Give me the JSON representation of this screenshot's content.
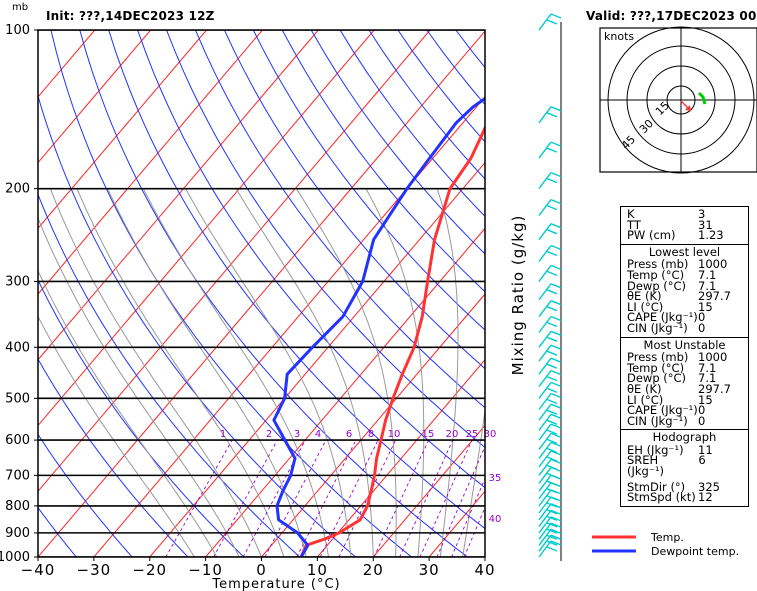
{
  "header": {
    "init": "Init: ???,14DEC2023 12Z",
    "valid": "Valid: ???,17DEC2023 00Z"
  },
  "chart_data": {
    "type": "line",
    "title": "",
    "xlabel": "Temperature (°C)",
    "ylabel": "mb",
    "secondary_label": "Mixing Ratio (g/kg)",
    "xlim": [
      -40,
      40
    ],
    "ylim": [
      1000,
      100
    ],
    "y_scale": "log",
    "x_ticks": [
      "−40",
      "−30",
      "−20",
      "−10",
      "0",
      "10",
      "20",
      "30",
      "40"
    ],
    "y_ticks": [
      100,
      200,
      300,
      400,
      500,
      600,
      700,
      800,
      900,
      1000
    ],
    "mixing_ratio_labels": [
      "1",
      "2",
      "3",
      "4",
      "6",
      "8",
      "10",
      "15",
      "20",
      "25",
      "30",
      "35",
      "40"
    ],
    "series": [
      {
        "name": "Temp.",
        "color": "#ff3333",
        "points": [
          [
            7.1,
            1000
          ],
          [
            6.2,
            950
          ],
          [
            8.5,
            925
          ],
          [
            10.2,
            900
          ],
          [
            12.0,
            850
          ],
          [
            11.2,
            800
          ],
          [
            9.6,
            750
          ],
          [
            7.8,
            700
          ],
          [
            5.6,
            650
          ],
          [
            3.6,
            600
          ],
          [
            1.4,
            550
          ],
          [
            -0.6,
            500
          ],
          [
            -2.6,
            450
          ],
          [
            -4.6,
            400
          ],
          [
            -7.8,
            350
          ],
          [
            -12.2,
            300
          ],
          [
            -17.3,
            250
          ],
          [
            -22.3,
            200
          ],
          [
            -23.2,
            175
          ],
          [
            -25.6,
            150
          ],
          [
            -25.6,
            140
          ],
          [
            -20.0,
            125
          ],
          [
            -14.0,
            110
          ],
          [
            -11.6,
            100
          ]
        ]
      },
      {
        "name": "Dewpoint temp.",
        "color": "#2233ff",
        "points": [
          [
            7.1,
            1000
          ],
          [
            6.5,
            950
          ],
          [
            2.8,
            900
          ],
          [
            -2.6,
            850
          ],
          [
            -5.0,
            800
          ],
          [
            -6.2,
            750
          ],
          [
            -7.2,
            700
          ],
          [
            -9.0,
            650
          ],
          [
            -13.6,
            600
          ],
          [
            -18.6,
            550
          ],
          [
            -20.0,
            500
          ],
          [
            -23.2,
            450
          ],
          [
            -22.8,
            400
          ],
          [
            -22.0,
            350
          ],
          [
            -23.8,
            300
          ],
          [
            -28.2,
            250
          ],
          [
            -30.0,
            200
          ],
          [
            -30.6,
            175
          ],
          [
            -31.2,
            150
          ],
          [
            -30.6,
            140
          ],
          [
            -28.0,
            125
          ],
          [
            -23.2,
            110
          ],
          [
            -20.6,
            100
          ]
        ]
      }
    ],
    "wind_barbs": [
      100,
      150,
      175,
      200,
      225,
      250,
      275,
      300,
      325,
      350,
      375,
      400,
      425,
      450,
      475,
      500,
      525,
      550,
      575,
      600,
      625,
      650,
      675,
      700,
      725,
      750,
      775,
      800,
      825,
      850,
      875,
      900,
      925,
      950,
      975,
      1000
    ]
  },
  "hodograph": {
    "label": "knots",
    "ring_labels": [
      "15",
      "30",
      "45"
    ]
  },
  "indices": {
    "k_label": "K",
    "k": "3",
    "tt_label": "TT",
    "tt": "31",
    "pw_label": "PW (cm)",
    "pw": "1.23"
  },
  "lowest_level": {
    "title": "Lowest level",
    "press_label": "Press (mb)",
    "press": "1000",
    "temp_label": "Temp (°C)",
    "temp": "7.1",
    "dewp_label": "Dewp (°C)",
    "dewp": "7.1",
    "theta_label": "θE (K)",
    "theta": "297.7",
    "li_label": "LI (°C)",
    "li": "15",
    "cape_label": "CAPE (Jkg⁻¹)",
    "cape": "0",
    "cin_label": "CIN (Jkg⁻¹)",
    "cin": "0"
  },
  "most_unstable": {
    "title": "Most Unstable",
    "press_label": "Press (mb)",
    "press": "1000",
    "temp_label": "Temp (°C)",
    "temp": "7.1",
    "dewp_label": "Dewp (°C)",
    "dewp": "7.1",
    "theta_label": "θE (K)",
    "theta": "297.7",
    "li_label": "LI (°C)",
    "li": "15",
    "cape_label": "CAPE (Jkg⁻¹)",
    "cape": "0",
    "cin_label": "CIN (Jkg⁻¹)",
    "cin": "0"
  },
  "hodo_params": {
    "title": "Hodograph",
    "eh_label": "EH (Jkg⁻¹)",
    "eh": "11",
    "sreh_label": "SREH (Jkg⁻¹)",
    "sreh": "6",
    "stmdir_label": "StmDir (°)",
    "stmdir": "325",
    "stmspd_label": "StmSpd (kt)",
    "stmspd": "12"
  },
  "legend": {
    "temp": "Temp.",
    "dew": "Dewpoint temp."
  },
  "colors": {
    "temp": "#ff3333",
    "dew": "#2233ff",
    "isotherm": "#ff2222",
    "dry_adiabat": "#2233ff",
    "moist_adiabat": "#999999",
    "mixing_ratio": "#9900cc",
    "barb": "#00cccc"
  }
}
